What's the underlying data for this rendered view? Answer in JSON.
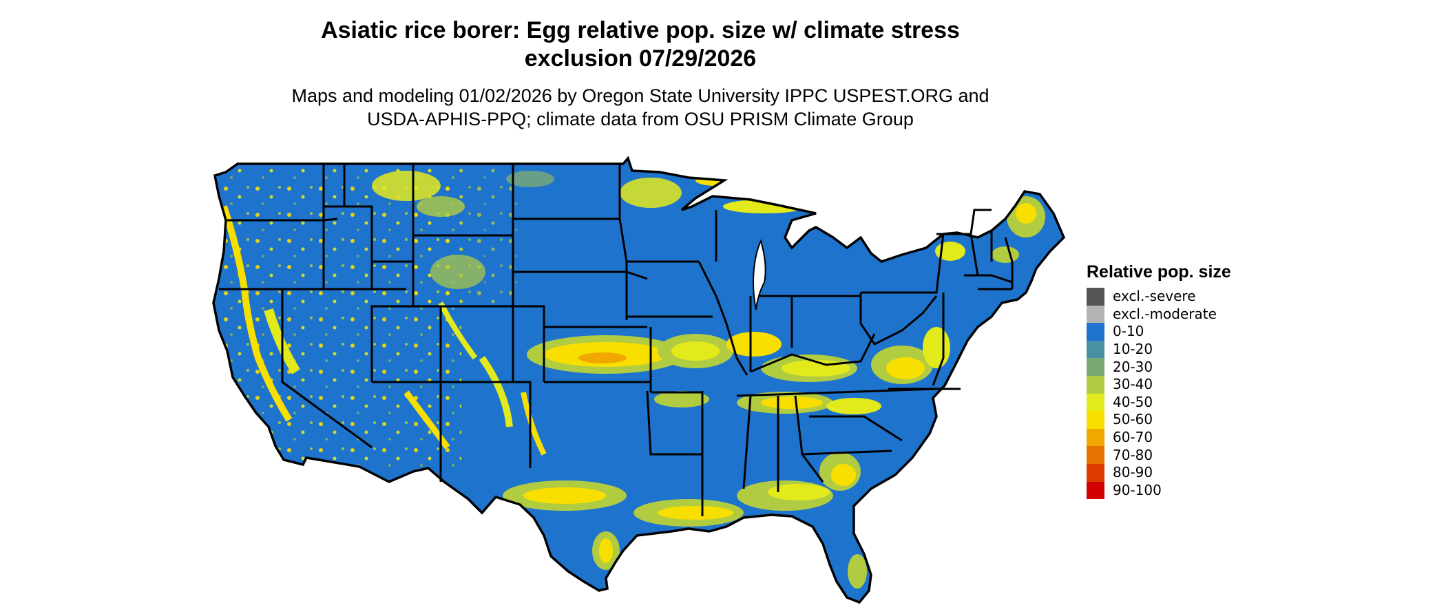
{
  "title_line1": "Asiatic rice borer: Egg relative pop. size w/ climate stress",
  "title_line2": "exclusion 07/29/2026",
  "subtitle_line1": "Maps and modeling 01/02/2026 by Oregon State University IPPC USPEST.ORG and",
  "subtitle_line2": "USDA-APHIS-PPQ; climate data from OSU PRISM Climate Group",
  "legend": {
    "title": "Relative pop. size",
    "items": [
      {
        "label": "excl.-severe",
        "color": "#555555"
      },
      {
        "label": "excl.-moderate",
        "color": "#b3b3b3"
      },
      {
        "label": "0-10",
        "color": "#1e73cc"
      },
      {
        "label": "10-20",
        "color": "#4891a3"
      },
      {
        "label": "20-30",
        "color": "#7aaa74"
      },
      {
        "label": "30-40",
        "color": "#b2cc42"
      },
      {
        "label": "40-50",
        "color": "#e3ea1c"
      },
      {
        "label": "50-60",
        "color": "#f8df00"
      },
      {
        "label": "60-70",
        "color": "#f0a800"
      },
      {
        "label": "70-80",
        "color": "#e67300"
      },
      {
        "label": "80-90",
        "color": "#dc3c00"
      },
      {
        "label": "90-100",
        "color": "#d20000"
      }
    ]
  }
}
